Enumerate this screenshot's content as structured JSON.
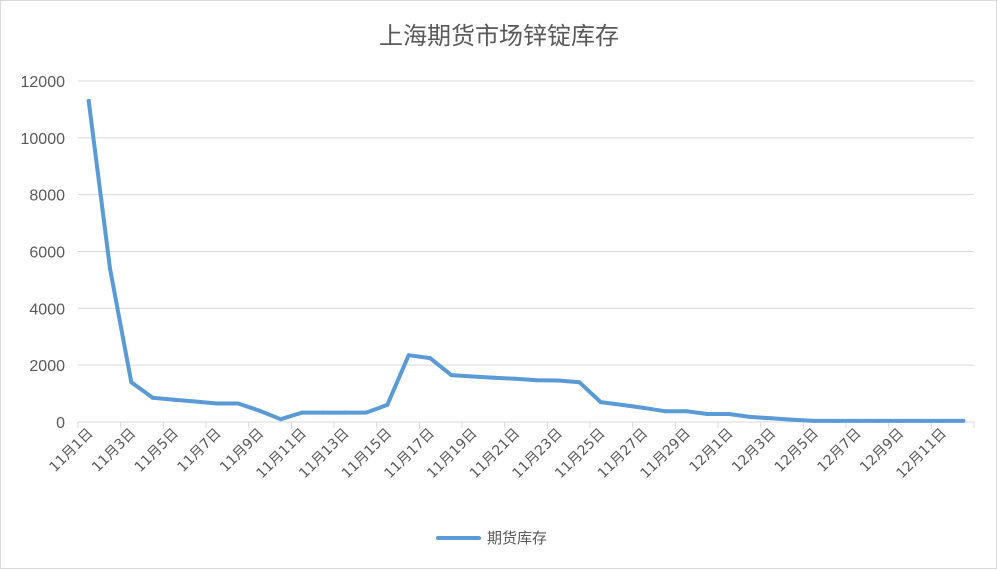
{
  "chart_data": {
    "type": "line",
    "title": "上海期货市场锌锭库存",
    "xlabel": "",
    "ylabel": "",
    "ylim": [
      0,
      12000
    ],
    "yticks": [
      0,
      2000,
      4000,
      6000,
      8000,
      10000,
      12000
    ],
    "grid": true,
    "legend_position": "bottom",
    "colors": {
      "series": "#5b9bd5",
      "grid": "#d9d9d9",
      "text": "#595959"
    },
    "categories": [
      "11月1日",
      "11月2日",
      "11月3日",
      "11月4日",
      "11月5日",
      "11月6日",
      "11月7日",
      "11月8日",
      "11月9日",
      "11月10日",
      "11月11日",
      "11月12日",
      "11月13日",
      "11月14日",
      "11月15日",
      "11月16日",
      "11月17日",
      "11月18日",
      "11月19日",
      "11月20日",
      "11月21日",
      "11月22日",
      "11月23日",
      "11月24日",
      "11月25日",
      "11月26日",
      "11月27日",
      "11月28日",
      "11月29日",
      "11月30日",
      "12月1日",
      "12月2日",
      "12月3日",
      "12月4日",
      "12月5日",
      "12月6日",
      "12月7日",
      "12月8日",
      "12月9日",
      "12月10日",
      "12月11日",
      "12月12日"
    ],
    "x_tick_labels": [
      "11月1日",
      "11月3日",
      "11月5日",
      "11月7日",
      "11月9日",
      "11月11日",
      "11月13日",
      "11月15日",
      "11月17日",
      "11月19日",
      "11月21日",
      "11月23日",
      "11月25日",
      "11月27日",
      "11月29日",
      "12月1日",
      "12月3日",
      "12月5日",
      "12月7日",
      "12月9日",
      "12月11日"
    ],
    "series": [
      {
        "name": "期货库存",
        "values": [
          11300,
          5400,
          1400,
          850,
          780,
          720,
          650,
          650,
          400,
          100,
          330,
          330,
          330,
          330,
          600,
          2350,
          2250,
          1650,
          1600,
          1560,
          1520,
          1470,
          1460,
          1400,
          700,
          600,
          500,
          380,
          380,
          280,
          280,
          180,
          130,
          80,
          40,
          40,
          40,
          40,
          40,
          40,
          40,
          40
        ]
      }
    ]
  }
}
